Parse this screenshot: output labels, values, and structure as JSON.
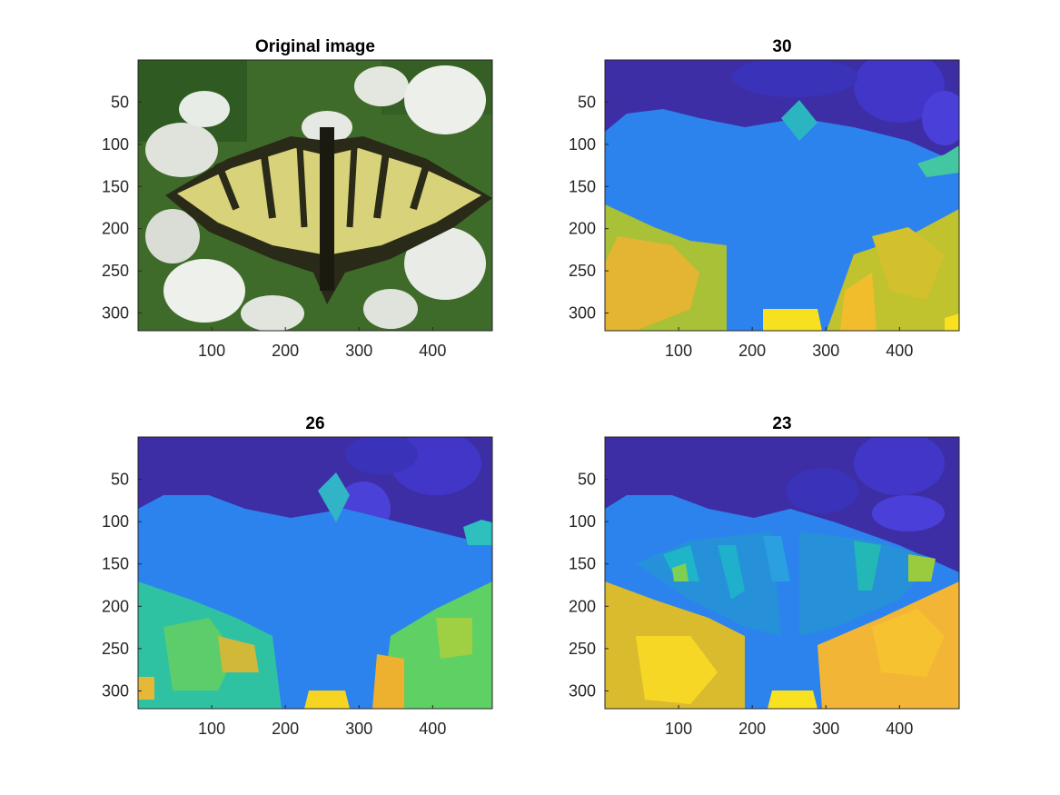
{
  "figure": {
    "panels": [
      {
        "title": "Original image",
        "kind": "photo"
      },
      {
        "title": "30",
        "kind": "segmentation"
      },
      {
        "title": "26",
        "kind": "segmentation"
      },
      {
        "title": "23",
        "kind": "segmentation"
      }
    ]
  },
  "chart_data": [
    {
      "type": "heatmap",
      "title": "Original image",
      "xlim": [
        0,
        481
      ],
      "ylim": [
        321,
        0
      ],
      "xticks": [
        100,
        200,
        300,
        400
      ],
      "yticks": [
        50,
        100,
        150,
        200,
        250,
        300
      ],
      "grid": false
    },
    {
      "type": "heatmap",
      "title": "30",
      "xlim": [
        0,
        481
      ],
      "ylim": [
        321,
        0
      ],
      "xticks": [
        100,
        200,
        300,
        400
      ],
      "yticks": [
        50,
        100,
        150,
        200,
        250,
        300
      ],
      "grid": false,
      "colormap": [
        "#3a2fa8",
        "#2d85f0",
        "#1fbfb8",
        "#a8c232",
        "#f2c12a",
        "#f9e11f"
      ]
    },
    {
      "type": "heatmap",
      "title": "26",
      "xlim": [
        0,
        481
      ],
      "ylim": [
        321,
        0
      ],
      "xticks": [
        100,
        200,
        300,
        400
      ],
      "yticks": [
        50,
        100,
        150,
        200,
        250,
        300
      ],
      "grid": false,
      "colormap": [
        "#3a2fa8",
        "#2d85f0",
        "#25c0a8",
        "#5fd06a",
        "#e5b830",
        "#f9e11f"
      ]
    },
    {
      "type": "heatmap",
      "title": "23",
      "xlim": [
        0,
        481
      ],
      "ylim": [
        321,
        0
      ],
      "xticks": [
        100,
        200,
        300,
        400
      ],
      "yticks": [
        50,
        100,
        150,
        200,
        250,
        300
      ],
      "grid": false,
      "colormap": [
        "#3a2fa8",
        "#2d85f0",
        "#1fb3c8",
        "#7fcf52",
        "#f2b535",
        "#f9e11f"
      ]
    }
  ]
}
